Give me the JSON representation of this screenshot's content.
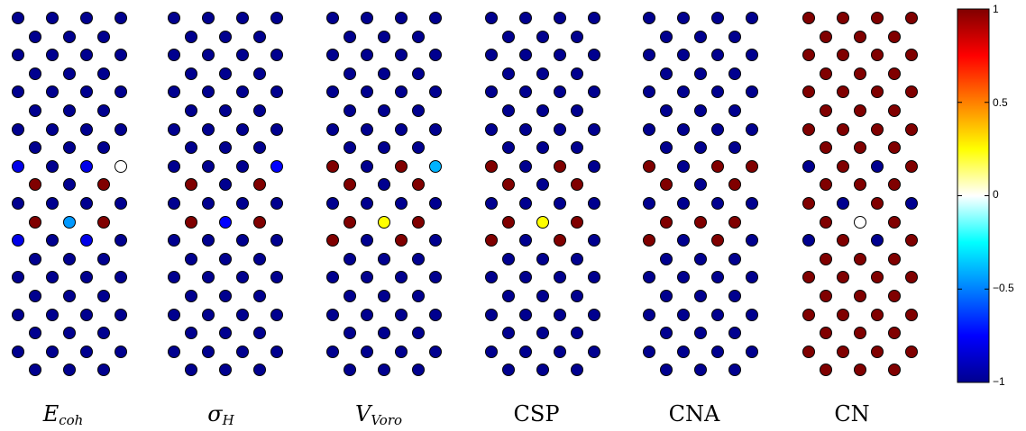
{
  "colorbar": {
    "range": [
      -1,
      1
    ],
    "ticks": [
      {
        "value": 1,
        "label": "1"
      },
      {
        "value": 0.5,
        "label": "0.5"
      },
      {
        "value": 0,
        "label": "0"
      },
      {
        "value": -0.5,
        "label": "−0.5"
      },
      {
        "value": -1,
        "label": "−1"
      }
    ],
    "colormap": "jet",
    "stops": [
      "#00008f",
      "#0000ff",
      "#0080ff",
      "#00ffff",
      "#ffffff",
      "#ffff00",
      "#ff8000",
      "#ff0000",
      "#800000"
    ]
  },
  "panels": [
    {
      "label_main": "E",
      "label_sub": "coh",
      "upright": false,
      "normal_value": -1,
      "special": {
        "c1": -0.8,
        "c2": 1,
        "c3": -0.45,
        "c4": 0
      }
    },
    {
      "label_main": "σ",
      "label_sub": "H",
      "upright": false,
      "normal_value": -1,
      "special": {
        "c1": -1,
        "c2": 1,
        "c3": -0.75,
        "c4": -0.75
      }
    },
    {
      "label_main": "V",
      "label_sub": "Voro",
      "upright": false,
      "normal_value": -1,
      "special": {
        "c1": 1,
        "c2": 1,
        "c3": 0.25,
        "c4": -0.4
      }
    },
    {
      "label_main": "CSP",
      "label_sub": "",
      "upright": true,
      "normal_value": -1,
      "special": {
        "c1": 1,
        "c2": 1,
        "c3": 0.25,
        "c4": -1
      }
    },
    {
      "label_main": "CNA",
      "label_sub": "",
      "upright": true,
      "normal_value": -1,
      "special": {
        "c1": 1,
        "c2": 1,
        "c3": 1,
        "c4": 1
      }
    },
    {
      "label_main": "CN",
      "label_sub": "",
      "upright": true,
      "normal_value": 1,
      "special": {
        "c1": -1,
        "c2": 1,
        "c3": 0,
        "c4": 1
      }
    }
  ]
}
